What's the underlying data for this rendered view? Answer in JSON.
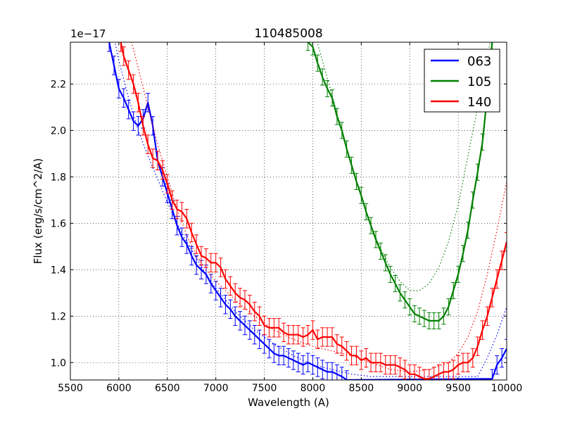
{
  "chart_data": {
    "type": "line",
    "title": "110485008",
    "xlabel": "Wavelength (A)",
    "ylabel": "Flux (erg/s/cm^2/A)",
    "y_scale_label": "1e−17",
    "xlim": [
      5500,
      10000
    ],
    "ylim": [
      0.925,
      2.38
    ],
    "xticks": [
      5500,
      6000,
      6500,
      7000,
      7500,
      8000,
      8500,
      9000,
      9500,
      10000
    ],
    "xtick_labels": [
      "5500",
      "6000",
      "6500",
      "7000",
      "7500",
      "8000",
      "8500",
      "9000",
      "9500",
      "10000"
    ],
    "yticks": [
      1.0,
      1.2,
      1.4,
      1.6,
      1.8,
      2.0,
      2.2
    ],
    "ytick_labels": [
      "1.0",
      "1.2",
      "1.4",
      "1.6",
      "1.8",
      "2.0",
      "2.2"
    ],
    "grid": true,
    "legend_position": "top-right",
    "series": [
      {
        "name": "063",
        "color": "#0000ff",
        "error": 0.04,
        "x": [
          5900,
          5950,
          6000,
          6050,
          6100,
          6150,
          6200,
          6250,
          6300,
          6350,
          6400,
          6450,
          6500,
          6550,
          6600,
          6650,
          6700,
          6750,
          6800,
          6850,
          6900,
          6950,
          7000,
          7050,
          7100,
          7150,
          7200,
          7250,
          7300,
          7350,
          7400,
          7450,
          7500,
          7550,
          7600,
          7650,
          7700,
          7750,
          7800,
          7850,
          7900,
          7950,
          8000,
          8050,
          8100,
          8150,
          8200,
          8250,
          8300,
          8350,
          9850,
          9900,
          9950,
          10000
        ],
        "y": [
          2.38,
          2.28,
          2.18,
          2.14,
          2.09,
          2.04,
          2.02,
          2.05,
          2.12,
          2.02,
          1.87,
          1.8,
          1.73,
          1.66,
          1.59,
          1.54,
          1.51,
          1.46,
          1.42,
          1.4,
          1.38,
          1.34,
          1.31,
          1.28,
          1.25,
          1.23,
          1.2,
          1.18,
          1.16,
          1.14,
          1.12,
          1.1,
          1.08,
          1.06,
          1.04,
          1.03,
          1.03,
          1.02,
          1.01,
          1.0,
          0.99,
          1.0,
          0.99,
          0.98,
          0.97,
          0.96,
          0.96,
          0.95,
          0.94,
          0.925,
          0.93,
          0.99,
          1.02,
          1.06
        ],
        "model_x": [
          5950,
          6000,
          6100,
          6200,
          6300,
          6400,
          6500,
          6600,
          6700,
          6800,
          6900,
          7000,
          7200,
          7400,
          7600,
          7800,
          8000,
          8200,
          8400,
          8600,
          9700,
          9800,
          9900,
          10000
        ],
        "model_y": [
          2.4,
          2.3,
          2.14,
          2.0,
          1.89,
          1.79,
          1.69,
          1.6,
          1.52,
          1.45,
          1.38,
          1.32,
          1.22,
          1.14,
          1.08,
          1.03,
          0.99,
          0.97,
          0.95,
          0.94,
          0.94,
          1.02,
          1.12,
          1.24
        ]
      },
      {
        "name": "105",
        "color": "#008000",
        "error": 0.035,
        "x": [
          7950,
          8000,
          8050,
          8100,
          8150,
          8200,
          8250,
          8300,
          8350,
          8400,
          8450,
          8500,
          8550,
          8600,
          8650,
          8700,
          8750,
          8800,
          8850,
          8900,
          8950,
          9000,
          9050,
          9100,
          9150,
          9200,
          9250,
          9300,
          9350,
          9400,
          9450,
          9500,
          9550,
          9600,
          9650,
          9700,
          9750,
          9800,
          9850
        ],
        "y": [
          2.38,
          2.36,
          2.29,
          2.23,
          2.18,
          2.14,
          2.06,
          2.0,
          1.92,
          1.85,
          1.78,
          1.72,
          1.65,
          1.59,
          1.53,
          1.48,
          1.43,
          1.38,
          1.34,
          1.3,
          1.27,
          1.24,
          1.21,
          1.2,
          1.19,
          1.18,
          1.18,
          1.18,
          1.2,
          1.24,
          1.31,
          1.38,
          1.47,
          1.57,
          1.7,
          1.82,
          1.95,
          2.15,
          2.38
        ],
        "model_x": [
          8000,
          8100,
          8200,
          8300,
          8400,
          8500,
          8600,
          8700,
          8800,
          8900,
          9000,
          9100,
          9200,
          9300,
          9400,
          9500,
          9600,
          9700,
          9800,
          9850
        ],
        "model_y": [
          2.45,
          2.3,
          2.15,
          2.0,
          1.85,
          1.71,
          1.59,
          1.49,
          1.41,
          1.35,
          1.31,
          1.31,
          1.34,
          1.41,
          1.52,
          1.68,
          1.89,
          2.1,
          2.32,
          2.42
        ]
      },
      {
        "name": "140",
        "color": "#ff0000",
        "error": 0.04,
        "x": [
          6020,
          6050,
          6100,
          6150,
          6200,
          6250,
          6300,
          6350,
          6400,
          6450,
          6500,
          6550,
          6600,
          6650,
          6700,
          6750,
          6800,
          6850,
          6900,
          6950,
          7000,
          7050,
          7100,
          7150,
          7200,
          7250,
          7300,
          7350,
          7400,
          7450,
          7500,
          7550,
          7600,
          7650,
          7700,
          7750,
          7800,
          7850,
          7900,
          7950,
          8000,
          8050,
          8100,
          8150,
          8200,
          8250,
          8300,
          8350,
          8400,
          8450,
          8500,
          8550,
          8600,
          8650,
          8700,
          8750,
          8800,
          8850,
          8900,
          8950,
          9000,
          9050,
          9100,
          9150,
          9200,
          9250,
          9300,
          9350,
          9400,
          9450,
          9500,
          9550,
          9600,
          9650,
          9700,
          9750,
          9800,
          9850,
          9900,
          9950,
          10000
        ],
        "y": [
          2.38,
          2.32,
          2.26,
          2.2,
          2.12,
          2.02,
          1.94,
          1.88,
          1.87,
          1.83,
          1.77,
          1.7,
          1.66,
          1.65,
          1.62,
          1.56,
          1.51,
          1.46,
          1.45,
          1.43,
          1.43,
          1.41,
          1.36,
          1.33,
          1.3,
          1.28,
          1.27,
          1.25,
          1.22,
          1.2,
          1.16,
          1.15,
          1.15,
          1.15,
          1.13,
          1.12,
          1.12,
          1.12,
          1.11,
          1.12,
          1.14,
          1.1,
          1.11,
          1.11,
          1.11,
          1.08,
          1.07,
          1.05,
          1.03,
          1.03,
          1.01,
          1.02,
          1.0,
          1.0,
          1.0,
          0.99,
          0.99,
          0.99,
          0.98,
          0.97,
          0.95,
          0.95,
          0.94,
          0.93,
          0.93,
          0.94,
          0.95,
          0.96,
          0.96,
          0.97,
          0.99,
          1.0,
          1.0,
          1.02,
          1.07,
          1.14,
          1.2,
          1.28,
          1.36,
          1.44,
          1.52
        ],
        "model_x": [
          6050,
          6100,
          6150,
          6200,
          6300,
          6400,
          6500,
          6600,
          6700,
          6800,
          6900,
          7000,
          7200,
          7400,
          7600,
          7800,
          8000,
          8200,
          8400,
          8600,
          8800,
          9000,
          9200,
          9400,
          9500,
          9600,
          9700,
          9800,
          9900,
          10000
        ],
        "model_y": [
          2.5,
          2.43,
          2.35,
          2.27,
          2.1,
          1.94,
          1.8,
          1.66,
          1.55,
          1.46,
          1.4,
          1.35,
          1.27,
          1.2,
          1.14,
          1.1,
          1.07,
          1.05,
          1.03,
          1.0,
          0.97,
          0.96,
          0.97,
          1.0,
          1.04,
          1.11,
          1.22,
          1.38,
          1.57,
          1.78
        ]
      }
    ]
  }
}
